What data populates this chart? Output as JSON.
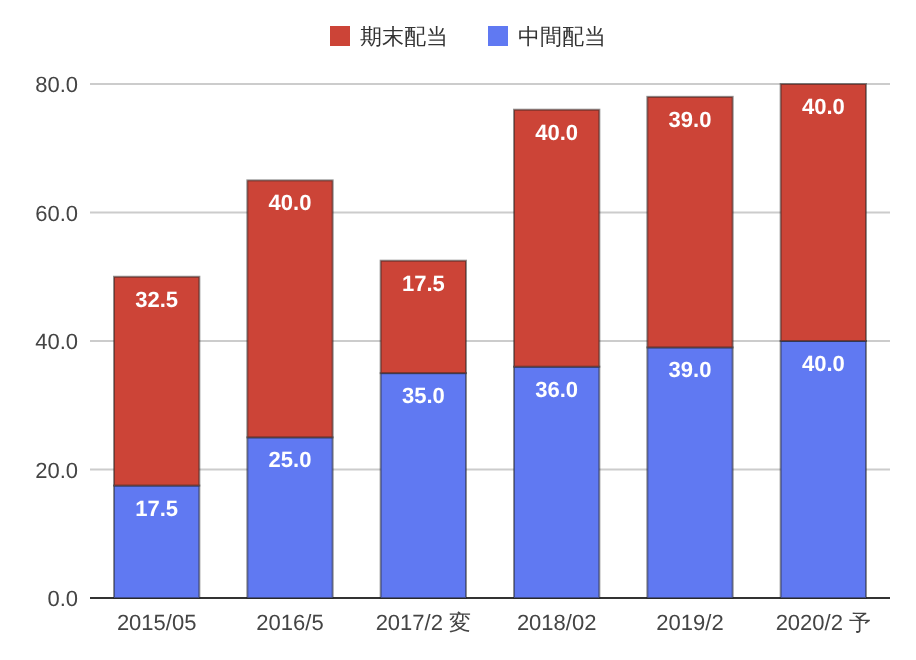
{
  "chart_data": {
    "type": "bar",
    "stacked": true,
    "categories": [
      "2015/05",
      "2016/5",
      "2017/2 変",
      "2018/02",
      "2019/2",
      "2020/2 予"
    ],
    "series": [
      {
        "name": "中間配当",
        "color": "#6079f2",
        "values": [
          17.5,
          25,
          35,
          36,
          39,
          40
        ],
        "value_labels": [
          "17.5",
          "25.0",
          "35.0",
          "36.0",
          "39.0",
          "40.0"
        ]
      },
      {
        "name": "期末配当",
        "color": "#cc4437",
        "values": [
          32.5,
          40,
          17.5,
          40,
          39,
          40
        ],
        "value_labels": [
          "32.5",
          "40.0",
          "17.5",
          "40.0",
          "39.0",
          "40.0"
        ]
      }
    ],
    "ylim": [
      0,
      80
    ],
    "yticks": [
      {
        "value": 0,
        "label": "0.0"
      },
      {
        "value": 20,
        "label": "20.0"
      },
      {
        "value": 40,
        "label": "40.0"
      },
      {
        "value": 60,
        "label": "60.0"
      },
      {
        "value": 80,
        "label": "80.0"
      }
    ],
    "grid": "y",
    "legend": "top"
  }
}
